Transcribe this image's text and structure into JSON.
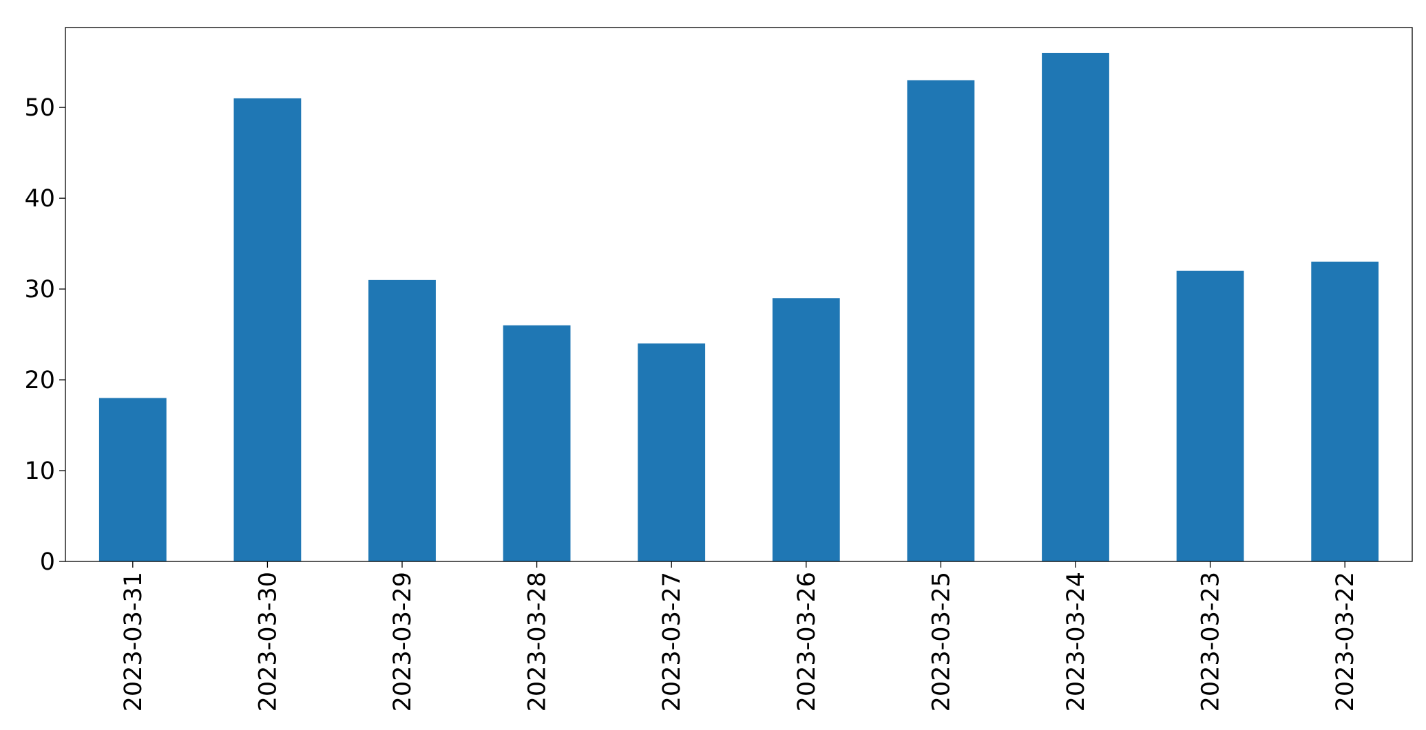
{
  "chart_data": {
    "type": "bar",
    "categories": [
      "2023-03-31",
      "2023-03-30",
      "2023-03-29",
      "2023-03-28",
      "2023-03-27",
      "2023-03-26",
      "2023-03-25",
      "2023-03-24",
      "2023-03-23",
      "2023-03-22"
    ],
    "values": [
      18,
      51,
      31,
      26,
      24,
      29,
      53,
      56,
      32,
      33
    ],
    "color": "#1f77b4",
    "ylim": [
      0,
      58.8
    ],
    "yticks": [
      0,
      10,
      20,
      30,
      40,
      50
    ],
    "grid": false
  }
}
